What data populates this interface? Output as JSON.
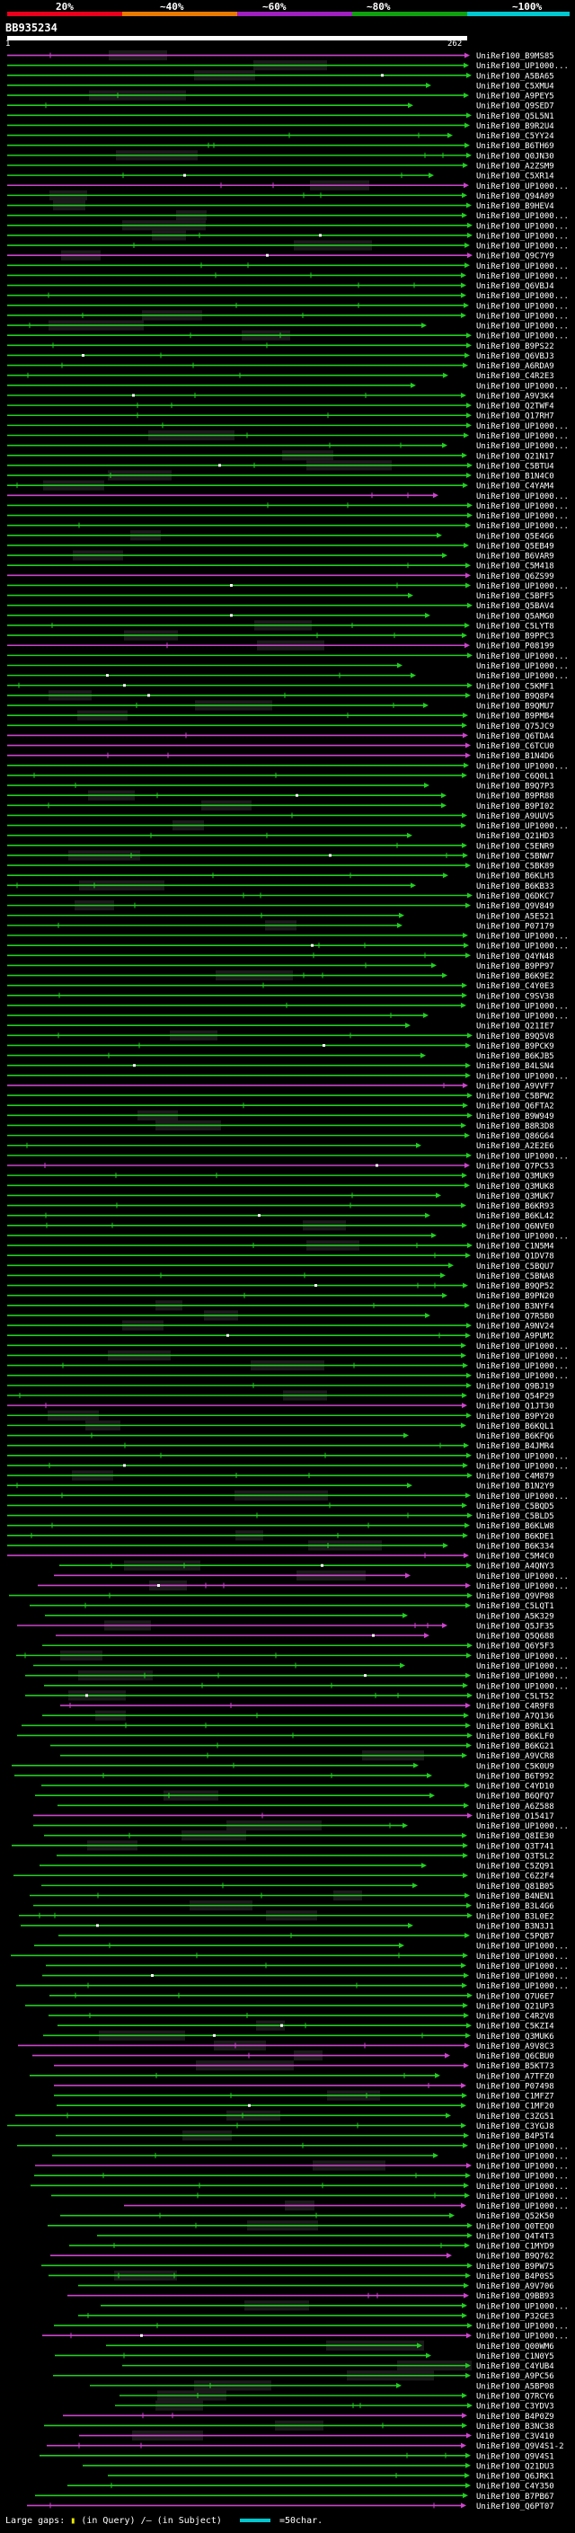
{
  "legend": {
    "labels": [
      "20%",
      "~40%",
      "~60%",
      "~80%",
      "~100%"
    ],
    "colors": [
      "#e8001c",
      "#e87a00",
      "#a020c0",
      "#10a010",
      "#00c8d0"
    ]
  },
  "query": {
    "id": "BB935234",
    "start": "1",
    "end": "262"
  },
  "colors": {
    "green_hit": "#22cc22",
    "magenta_hit": "#cc44cc",
    "gap_block": "#1a1a1a",
    "bg": "#000000"
  },
  "hits": [
    "UniRef100_B9MS85",
    "UniRef100_UP1000...",
    "UniRef100_A5BA65",
    "UniRef100_C5XMU4",
    "UniRef100_A9PEY5",
    "UniRef100_Q9SED7",
    "UniRef100_Q5L5N1",
    "UniRef100_B9R2U4",
    "UniRef100_C5YY24",
    "UniRef100_B6TH69",
    "UniRef100_Q0JN30",
    "UniRef100_A2ZSM9",
    "UniRef100_C5XR14",
    "UniRef100_UP1000...",
    "UniRef100_Q94A09",
    "UniRef100_B9HEV4",
    "UniRef100_UP1000...",
    "UniRef100_UP1000...",
    "UniRef100_UP1000...",
    "UniRef100_UP1000...",
    "UniRef100_Q9C7Y9",
    "UniRef100_UP1000...",
    "UniRef100_UP1000...",
    "UniRef100_Q6VBJ4",
    "UniRef100_UP1000...",
    "UniRef100_UP1000...",
    "UniRef100_UP1000...",
    "UniRef100_UP1000...",
    "UniRef100_UP1000...",
    "UniRef100_B9PS22",
    "UniRef100_Q6VBJ3",
    "UniRef100_A6RDA9",
    "UniRef100_C4R2E3",
    "UniRef100_UP1000...",
    "UniRef100_A9V3K4",
    "UniRef100_Q2TWF4",
    "UniRef100_Q17RH7",
    "UniRef100_UP1000...",
    "UniRef100_UP1000...",
    "UniRef100_UP1000...",
    "UniRef100_Q21N17",
    "UniRef100_C5BTU4",
    "UniRef100_B1N4C0",
    "UniRef100_C4YAM4",
    "UniRef100_UP1000...",
    "UniRef100_UP1000...",
    "UniRef100_UP1000...",
    "UniRef100_UP1000...",
    "UniRef100_Q5E4G6",
    "UniRef100_Q5EB49",
    "UniRef100_B6VAR9",
    "UniRef100_C5M418",
    "UniRef100_Q6ZS99",
    "UniRef100_UP1000...",
    "UniRef100_C5BPF5",
    "UniRef100_Q5BAV4",
    "UniRef100_Q5AMG0",
    "UniRef100_C5LYT8",
    "UniRef100_B9PPC3",
    "UniRef100_P08199",
    "UniRef100_UP1000...",
    "UniRef100_UP1000...",
    "UniRef100_UP1000...",
    "UniRef100_C5KMF1",
    "UniRef100_B9Q8P4",
    "UniRef100_B9QMU7",
    "UniRef100_B9PMB4",
    "UniRef100_Q75JC9",
    "UniRef100_Q6TDA4",
    "UniRef100_C6TCU0",
    "UniRef100_B1N4D6",
    "UniRef100_UP1000...",
    "UniRef100_C6Q0L1",
    "UniRef100_B9Q7P3",
    "UniRef100_B9PR88",
    "UniRef100_B9PI02",
    "UniRef100_A9UUV5",
    "UniRef100_UP1000...",
    "UniRef100_Q21HD3",
    "UniRef100_C5ENR9",
    "UniRef100_C5BNW7",
    "UniRef100_C5BK89",
    "UniRef100_B6KLH3",
    "UniRef100_B6KB33",
    "UniRef100_Q6DKC7",
    "UniRef100_Q9V849",
    "UniRef100_A5E521",
    "UniRef100_P07179",
    "UniRef100_UP1000...",
    "UniRef100_UP1000...",
    "UniRef100_Q4YN48",
    "UniRef100_B9PP97",
    "UniRef100_B6K9E2",
    "UniRef100_C4Y0E3",
    "UniRef100_C9SV38",
    "UniRef100_UP1000...",
    "UniRef100_UP1000...",
    "UniRef100_Q21IE7",
    "UniRef100_B9Q5V8",
    "UniRef100_B9PCK9",
    "UniRef100_B6KJB5",
    "UniRef100_B4LSN4",
    "UniRef100_UP1000...",
    "UniRef100_A9VVF7",
    "UniRef100_C5BPW2",
    "UniRef100_Q6FTA2",
    "UniRef100_B9W949",
    "UniRef100_B8R3D8",
    "UniRef100_Q86G64",
    "UniRef100_A2E2E6",
    "UniRef100_UP1000...",
    "UniRef100_Q7PC53",
    "UniRef100_Q3MUK9",
    "UniRef100_Q3MUK8",
    "UniRef100_Q3MUK7",
    "UniRef100_B6KR93",
    "UniRef100_B6KL42",
    "UniRef100_Q6NVE0",
    "UniRef100_UP1000...",
    "UniRef100_C1N5M4",
    "UniRef100_Q1DV78",
    "UniRef100_C5BQU7",
    "UniRef100_C5BNA8",
    "UniRef100_B9QP52",
    "UniRef100_B9PN20",
    "UniRef100_B3NYF4",
    "UniRef100_Q7R5B0",
    "UniRef100_A9NV24",
    "UniRef100_A9PUM2",
    "UniRef100_UP1000...",
    "UniRef100_UP1000...",
    "UniRef100_UP1000...",
    "UniRef100_UP1000...",
    "UniRef100_Q9BJ19",
    "UniRef100_Q54P29",
    "UniRef100_Q1JT30",
    "UniRef100_B9PY20",
    "UniRef100_B6KQL1",
    "UniRef100_B6KFQ6",
    "UniRef100_B4JMR4",
    "UniRef100_UP1000...",
    "UniRef100_UP1000...",
    "UniRef100_C4M879",
    "UniRef100_B1N2Y9",
    "UniRef100_UP1000...",
    "UniRef100_C5BQD5",
    "UniRef100_C5BLD5",
    "UniRef100_B6KLW8",
    "UniRef100_B6KDE1",
    "UniRef100_B6K334",
    "UniRef100_C5M4C0",
    "UniRef100_A4QNY3",
    "UniRef100_UP1000...",
    "UniRef100_UP1000...",
    "UniRef100_Q9VP08",
    "UniRef100_C5LQT1",
    "UniRef100_A5K329",
    "UniRef100_Q5JF35",
    "UniRef100_Q5Q688",
    "UniRef100_Q6Y5F3",
    "UniRef100_UP1000...",
    "UniRef100_UP1000...",
    "UniRef100_UP1000...",
    "UniRef100_UP1000...",
    "UniRef100_C5LT52",
    "UniRef100_C4R9F8",
    "UniRef100_A7Q136",
    "UniRef100_B9RLK1",
    "UniRef100_B6KLF0",
    "UniRef100_B6KG21",
    "UniRef100_A9VCR8",
    "UniRef100_C5K0U9",
    "UniRef100_B6T992",
    "UniRef100_C4YD10",
    "UniRef100_B6QFQ7",
    "UniRef100_A6Z588",
    "UniRef100_O15417",
    "UniRef100_UP1000...",
    "UniRef100_Q8IE30",
    "UniRef100_Q3T741",
    "UniRef100_Q3T5L2",
    "UniRef100_C5ZQ91",
    "UniRef100_C6Z2F4",
    "UniRef100_Q81B05",
    "UniRef100_B4NEN1",
    "UniRef100_B3L4G6",
    "UniRef100_B3L0E2",
    "UniRef100_B3N3J1",
    "UniRef100_C5PQB7",
    "UniRef100_UP1000...",
    "UniRef100_UP1000...",
    "UniRef100_UP1000...",
    "UniRef100_UP1000...",
    "UniRef100_UP1000...",
    "UniRef100_Q7U6E7",
    "UniRef100_Q21UP3",
    "UniRef100_C4R2V8",
    "UniRef100_C5KZI4",
    "UniRef100_Q3MUK6",
    "UniRef100_A9V8C3",
    "UniRef100_Q6CBU0",
    "UniRef100_B5KT73",
    "UniRef100_A7TFZ0",
    "UniRef100_P07498",
    "UniRef100_C1MFZ7",
    "UniRef100_C1MF20",
    "UniRef100_C3ZG51",
    "UniRef100_C3YGJ8",
    "UniRef100_B4P5T4",
    "UniRef100_UP1000...",
    "UniRef100_UP1000...",
    "UniRef100_UP1000...",
    "UniRef100_UP1000...",
    "UniRef100_UP1000...",
    "UniRef100_UP1000...",
    "UniRef100_UP1000...",
    "UniRef100_Q52K50",
    "UniRef100_Q0TEQ0",
    "UniRef100_Q4T4T3",
    "UniRef100_C1MYD9",
    "UniRef100_B9Q762",
    "UniRef100_B9PW75",
    "UniRef100_B4P0S5",
    "UniRef100_A9V706",
    "UniRef100_Q9BB93",
    "UniRef100_UP1000...",
    "UniRef100_P32GE3",
    "UniRef100_UP1000...",
    "UniRef100_UP1000...",
    "UniRef100_Q00WM6",
    "UniRef100_C1N0Y5",
    "UniRef100_C4YUB4",
    "UniRef100_A9PC56",
    "UniRef100_A5BP08",
    "UniRef100_Q7RCY6",
    "UniRef100_C3YDV3",
    "UniRef100_B4P0Z9",
    "UniRef100_B3NC38",
    "UniRef100_C3V410",
    "UniRef100_Q9V4S1-2",
    "UniRef100_Q9V4S1",
    "UniRef100_Q21DU3",
    "UniRef100_Q6JRK1",
    "UniRef100_C4Y350",
    "UniRef100_B7PB67",
    "UniRef100_Q6PT07"
  ],
  "footer": {
    "gaps_label": "Large gaps:",
    "query_gap": "(in Query)",
    "subject_gap": "(in Subject)",
    "scale_label": "=50char."
  }
}
